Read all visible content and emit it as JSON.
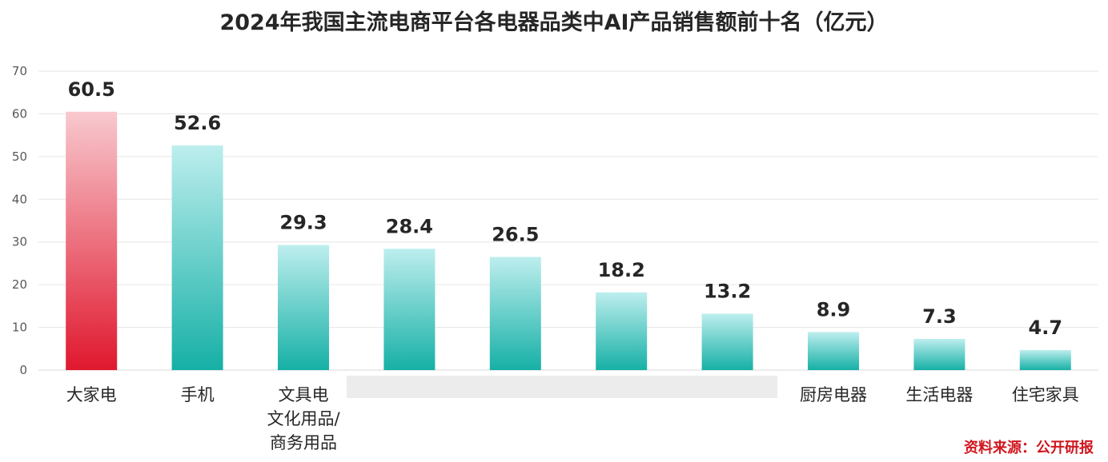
{
  "colors": {
    "highlight_top": "#f8c9cf",
    "highlight_bottom": "#e0182e",
    "bar_top": "#bdeeee",
    "bar_bottom": "#16b0a6",
    "blur_band": "#e9e9e9",
    "source": "#d0161e"
  },
  "chart_data": {
    "type": "bar",
    "title": "2024年我国主流电商平台各电器品类中AI产品销售额前十名（亿元）",
    "categories": [
      [
        "大家电"
      ],
      [
        "手机"
      ],
      [
        "文具电",
        "文化用品/",
        "商务用品"
      ],
      [],
      [],
      [],
      [],
      [
        "厨房电器"
      ],
      [
        "生活电器"
      ],
      [
        "住宅家具"
      ]
    ],
    "values": [
      60.5,
      52.6,
      29.3,
      28.4,
      26.5,
      18.2,
      13.2,
      8.9,
      7.3,
      4.7
    ],
    "value_labels": [
      "60.5",
      "52.6",
      "29.3",
      "28.4",
      "26.5",
      "18.2",
      "13.2",
      "8.9",
      "7.3",
      "4.7"
    ],
    "highlight_index": 0,
    "ylim": [
      0,
      70
    ],
    "yticks": [
      0,
      10,
      20,
      30,
      40,
      50,
      60,
      70
    ],
    "grid": true,
    "source": "资料来源：公开研报"
  }
}
